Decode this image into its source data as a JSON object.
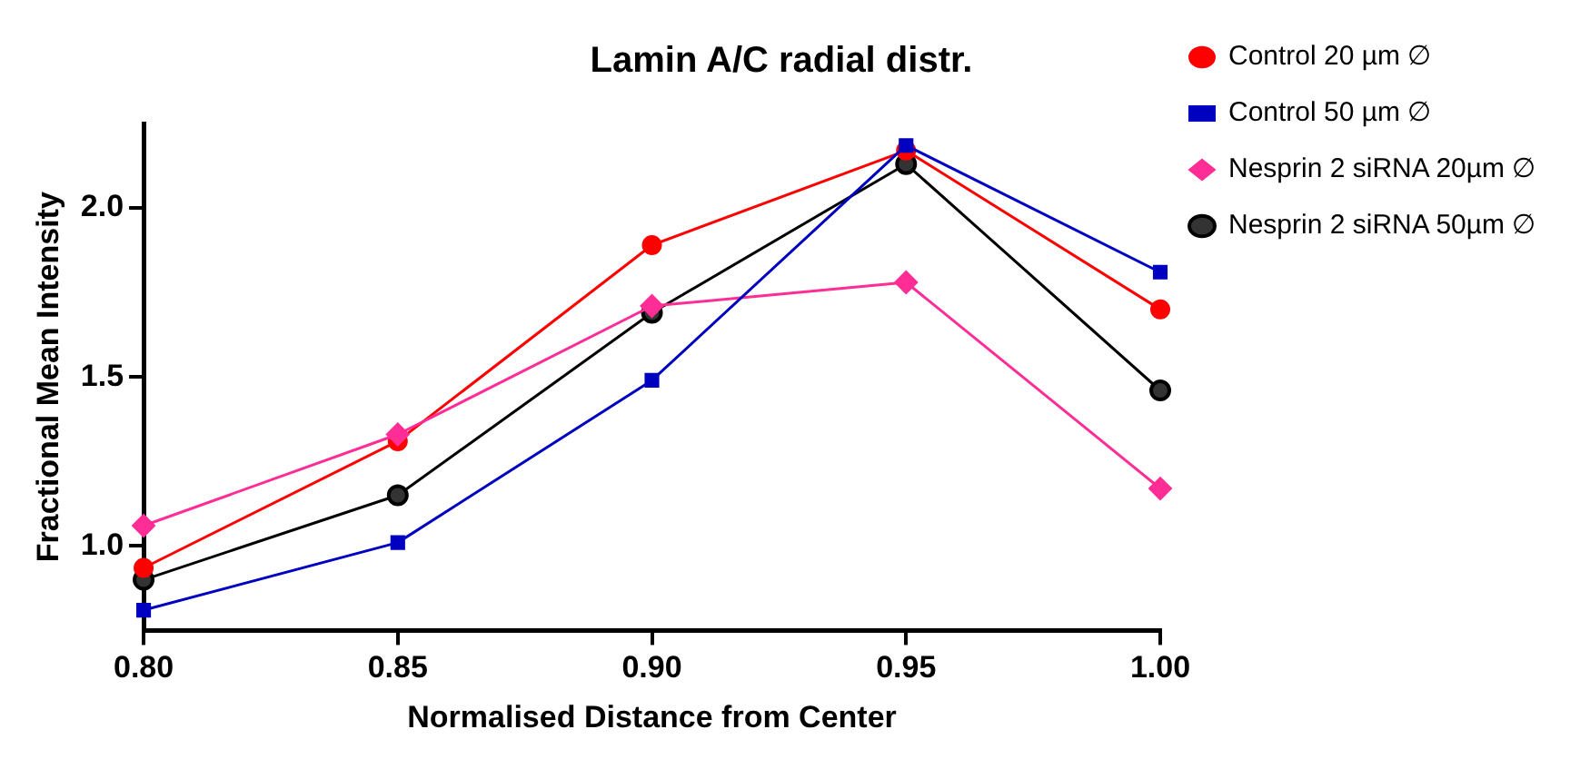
{
  "chart_data": {
    "type": "line",
    "title": "Lamin A/C radial distr.",
    "xlabel": "Normalised Distance from Center",
    "ylabel": "Fractional Mean Intensity",
    "x": [
      0.8,
      0.85,
      0.9,
      0.95,
      1.0
    ],
    "series": [
      {
        "name": "Control 20 µm ∅",
        "color": "#ff0000",
        "marker": "circle",
        "values": [
          0.935,
          1.31,
          1.89,
          2.17,
          1.7
        ]
      },
      {
        "name": "Control 50 µm ∅",
        "color": "#0000c0",
        "marker": "square",
        "values": [
          0.81,
          1.01,
          1.49,
          2.185,
          1.81
        ]
      },
      {
        "name": "Nesprin 2 siRNA 20µm ∅",
        "color": "#ff2d95",
        "marker": "diamond",
        "values": [
          1.06,
          1.33,
          1.71,
          1.78,
          1.17
        ]
      },
      {
        "name": "Nesprin 2 siRNA 50µm ∅",
        "color": "#000000",
        "marker": "circle",
        "values": [
          0.9,
          1.15,
          1.69,
          2.13,
          1.46
        ]
      }
    ],
    "xlim": [
      0.8,
      1.0
    ],
    "xticks": [
      {
        "value": 0.8,
        "label": "0.80"
      },
      {
        "value": 0.85,
        "label": "0.85"
      },
      {
        "value": 0.9,
        "label": "0.90"
      },
      {
        "value": 0.95,
        "label": "0.95"
      },
      {
        "value": 1.0,
        "label": "1.00"
      }
    ],
    "ylim": [
      0.75,
      2.25
    ],
    "yticks": [
      {
        "value": 1.0,
        "label": "1.0"
      },
      {
        "value": 1.5,
        "label": "1.5"
      },
      {
        "value": 2.0,
        "label": "2.0"
      }
    ],
    "grid": false,
    "legend": "right",
    "line_style": "solid"
  }
}
